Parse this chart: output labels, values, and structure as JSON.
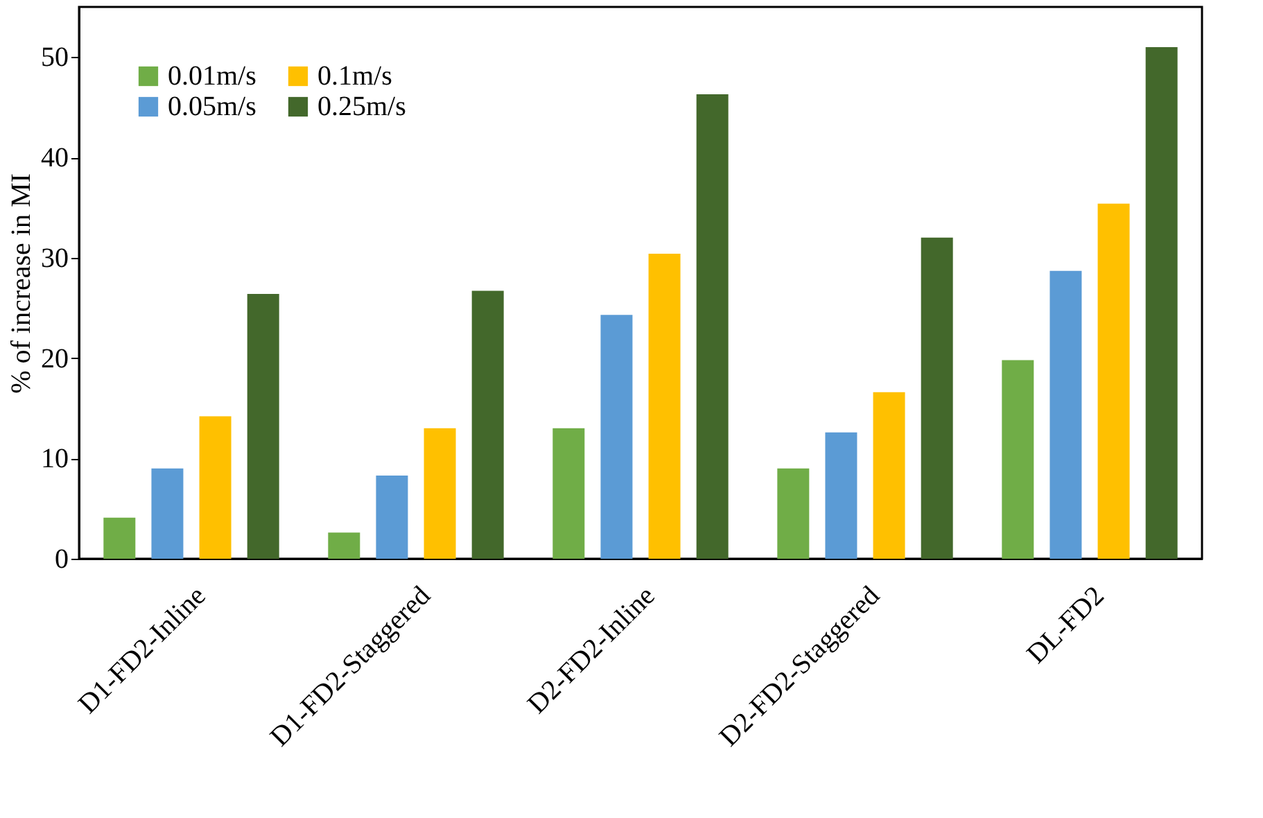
{
  "chart_data": {
    "type": "bar",
    "ylabel": "% of increase in MI",
    "categories": [
      "D1-FD2-Inline",
      "D1-FD2-Staggered",
      "D2-FD2-Inline",
      "D2-FD2-Staggered",
      "DL-FD2"
    ],
    "series": [
      {
        "name": "0.01m/s",
        "color": "#70ad47",
        "values": [
          4.1,
          2.6,
          13.0,
          9.0,
          19.8
        ]
      },
      {
        "name": "0.05m/s",
        "color": "#5b9bd5",
        "values": [
          9.0,
          8.3,
          24.3,
          12.6,
          28.7
        ]
      },
      {
        "name": "0.1m/s",
        "color": "#ffc000",
        "values": [
          14.2,
          13.0,
          30.4,
          16.6,
          35.4
        ]
      },
      {
        "name": "0.25m/s",
        "color": "#43682b",
        "values": [
          26.4,
          26.7,
          46.3,
          32.0,
          51.0
        ]
      }
    ],
    "ylim": [
      0,
      55
    ],
    "yticks": [
      0,
      10,
      20,
      30,
      40,
      50
    ],
    "grid": false,
    "legend": "top left"
  }
}
